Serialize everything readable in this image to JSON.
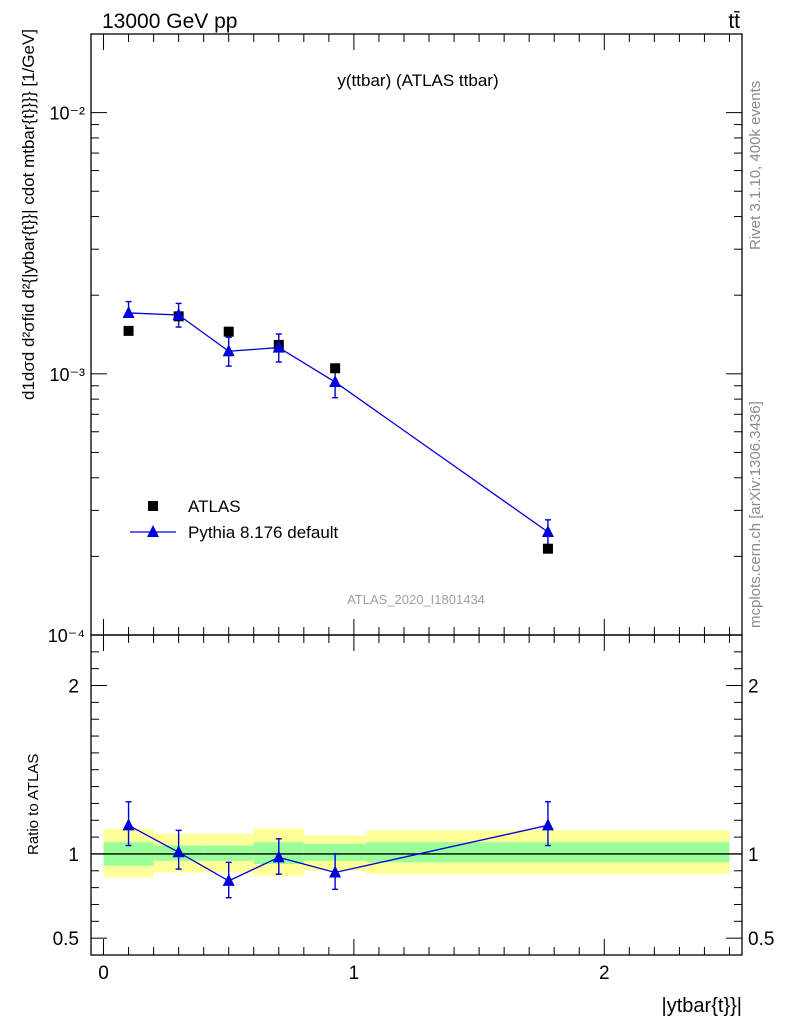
{
  "header": {
    "left": "13000 GeV pp",
    "right": "tt̄"
  },
  "side_text": {
    "rivet": "Rivet 3.1.10,  400k events",
    "mcplots": "mcplots.cern.ch [arXiv:1306.3436]"
  },
  "chart_data": [
    {
      "type": "scatter",
      "title": "y(ttbar) (ATLAS ttbar)",
      "watermark": "ATLAS_2020_I1801434",
      "ylabel": "d1dσd d²σfid d²{|ytbar{t}}| cdot mtbar{t}}}} [1/GeV]",
      "yscale": "log",
      "ylim": [
        0.0001,
        0.02
      ],
      "xlim": [
        -0.05,
        2.55
      ],
      "ytick_labels": {
        "major": [
          "10⁻⁴",
          "10⁻³",
          "10⁻²"
        ]
      },
      "legend_position": "bottom-left",
      "series": [
        {
          "name": "ATLAS",
          "kind": "data",
          "color": "#000000",
          "x": [
            0.1,
            0.3,
            0.5,
            0.7,
            0.925,
            1.775
          ],
          "y": [
            0.00146,
            0.00166,
            0.00145,
            0.00129,
            0.00105,
            0.000214
          ]
        },
        {
          "name": "Pythia 8.176 default",
          "kind": "mc",
          "color": "#0000dd",
          "x": [
            0.1,
            0.3,
            0.5,
            0.7,
            0.925,
            1.775
          ],
          "y": [
            0.00171,
            0.00168,
            0.00122,
            0.00126,
            0.00093,
            0.000248
          ],
          "yerr_low": [
            0.00171,
            0.00151,
            0.00107,
            0.00111,
            0.00081,
            0.000222
          ],
          "yerr_high": [
            0.00189,
            0.00186,
            0.00138,
            0.00142,
            0.00105,
            0.000276
          ]
        }
      ]
    },
    {
      "type": "scatter",
      "ylabel": "Ratio to ATLAS",
      "xlabel": "|ytbar{t}}|",
      "ylim": [
        0.4,
        2.3
      ],
      "xlim": [
        -0.05,
        2.55
      ],
      "ytick_labels": [
        "0.5",
        "1",
        "2"
      ],
      "xtick_labels": [
        "0",
        "1",
        "2"
      ],
      "reference_line": 1,
      "bands": {
        "bins": [
          [
            0,
            0.2
          ],
          [
            0.2,
            0.4
          ],
          [
            0.4,
            0.6
          ],
          [
            0.6,
            0.8
          ],
          [
            0.8,
            1.05
          ],
          [
            1.05,
            2.5
          ]
        ],
        "inner_band": {
          "color": "#99ff99",
          "low": [
            0.93,
            0.96,
            0.96,
            0.94,
            0.96,
            0.95
          ],
          "high": [
            1.07,
            1.05,
            1.05,
            1.07,
            1.06,
            1.07
          ]
        },
        "outer_band": {
          "color": "#ffff99",
          "low": [
            0.86,
            0.89,
            0.89,
            0.87,
            0.9,
            0.88
          ],
          "high": [
            1.15,
            1.12,
            1.12,
            1.15,
            1.11,
            1.14
          ]
        }
      },
      "series": [
        {
          "name": "Pythia 8.176 default",
          "color": "#0000dd",
          "x": [
            0.1,
            0.3,
            0.5,
            0.7,
            0.925,
            1.775
          ],
          "y": [
            1.17,
            1.01,
            0.84,
            0.98,
            0.89,
            1.17
          ],
          "yerr_low": [
            1.05,
            0.91,
            0.74,
            0.88,
            0.79,
            1.05
          ],
          "yerr_high": [
            1.31,
            1.14,
            0.95,
            1.09,
            1.0,
            1.31
          ]
        }
      ]
    }
  ]
}
